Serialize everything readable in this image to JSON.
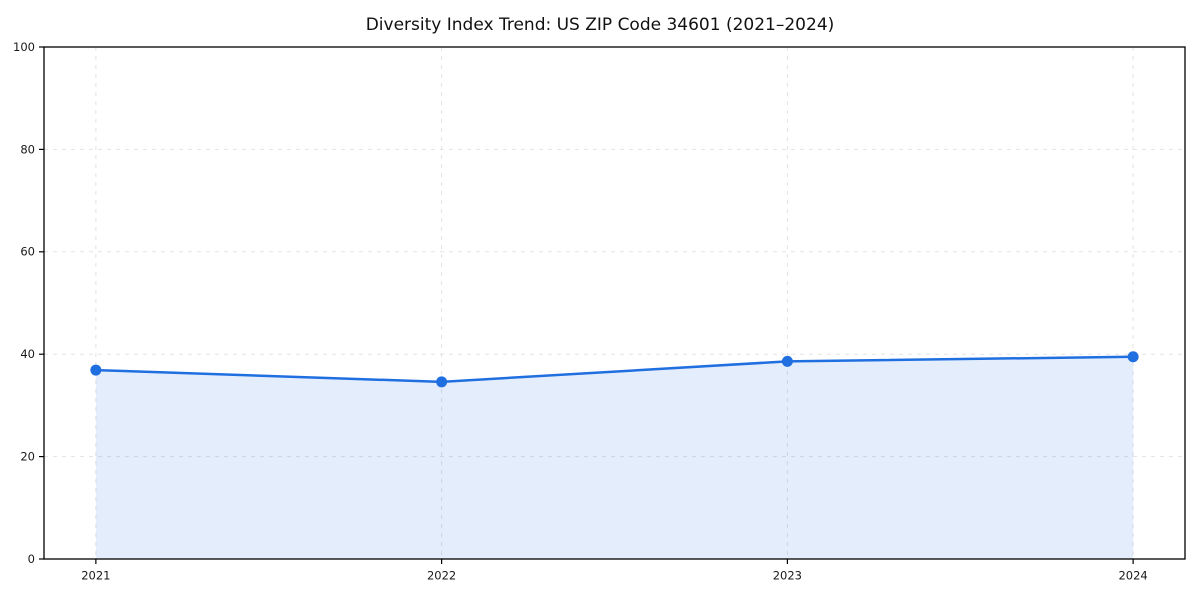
{
  "page": {
    "background_color": "#ffffff"
  },
  "chart_data": {
    "type": "line",
    "title": "Diversity Index Trend: US ZIP Code 34601 (2021–2024)",
    "x": [
      2021,
      2022,
      2023,
      2024
    ],
    "xtick_labels": [
      "2021",
      "2022",
      "2023",
      "2024"
    ],
    "series": [
      {
        "name": "Diversity Index",
        "values": [
          36.9,
          34.6,
          38.6,
          39.5
        ]
      }
    ],
    "xlabel": "",
    "ylabel": "",
    "ylim": [
      0,
      100
    ],
    "yticks": [
      0,
      20,
      40,
      60,
      80,
      100
    ],
    "x_margin_fraction": 0.05,
    "grid": true,
    "grid_style": "dashed",
    "legend_position": "none",
    "area": true,
    "colors": {
      "line": "#1f6fe0",
      "marker": "#1f6fe0",
      "area_fill": "rgba(31,111,224,0.12)",
      "grid": "#e3e3e3",
      "spine": "#000000",
      "tick_label": "#1a1a1a",
      "title": "#111111",
      "background": "#ffffff"
    },
    "style": {
      "line_width": 2.5,
      "marker_radius": 5.5,
      "tick_length": 5,
      "tick_label_font_size": 11.5
    }
  }
}
